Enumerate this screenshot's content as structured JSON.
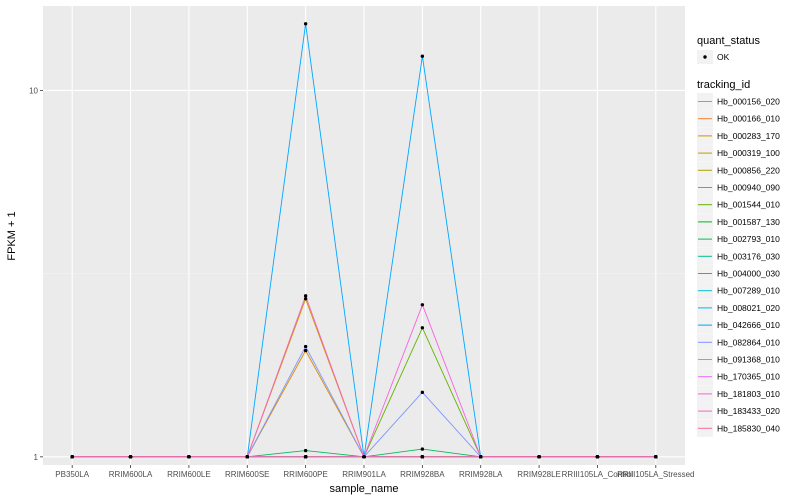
{
  "chart_data": {
    "type": "line",
    "xlabel": "sample_name",
    "ylabel": "FPKM + 1",
    "y_scale": "log10",
    "ylim": [
      0.95,
      17
    ],
    "y_ticks": [
      1,
      10
    ],
    "y_tick_labels": [
      "1",
      "10"
    ],
    "grid": true,
    "legend_position": "right",
    "categories": [
      "PB350LA",
      "RRIM600LA",
      "RRIM600LE",
      "RRIM600SE",
      "RRIM600PE",
      "RRIM901LA",
      "RRIM928BA",
      "RRIM928LA",
      "RRIM928LE",
      "RRIII105LA_Control",
      "RRIII105LA_Stressed"
    ],
    "point_legend": {
      "title": "quant_status",
      "entries": [
        {
          "label": "OK",
          "color": "#000000"
        }
      ]
    },
    "series_legend_title": "tracking_id",
    "series": [
      {
        "name": "Hb_000156_020",
        "color": "#F8766D",
        "values": [
          1,
          1,
          1,
          1,
          1.0,
          1,
          1.0,
          1,
          1,
          1,
          1
        ]
      },
      {
        "name": "Hb_000166_010",
        "color": "#EC8239",
        "values": [
          1,
          1,
          1,
          1,
          1.0,
          1,
          1.0,
          1,
          1,
          1,
          1
        ]
      },
      {
        "name": "Hb_000283_170",
        "color": "#DB8E00",
        "values": [
          1,
          1,
          1,
          1,
          1.95,
          1,
          1.0,
          1,
          1,
          1,
          1
        ]
      },
      {
        "name": "Hb_000319_100",
        "color": "#C79800",
        "values": [
          1,
          1,
          1,
          1,
          2.7,
          1,
          1.0,
          1,
          1,
          1,
          1
        ]
      },
      {
        "name": "Hb_000856_220",
        "color": "#AEA200",
        "values": [
          1,
          1,
          1,
          1,
          1.0,
          1,
          1.0,
          1,
          1,
          1,
          1
        ]
      },
      {
        "name": "Hb_000940_090",
        "color": "#8FAA00",
        "values": [
          1,
          1,
          1,
          1,
          1.0,
          1,
          1.0,
          1,
          1,
          1,
          1
        ]
      },
      {
        "name": "Hb_001544_010",
        "color": "#64B200",
        "values": [
          1,
          1,
          1,
          1,
          1.0,
          1,
          2.25,
          1,
          1,
          1,
          1
        ]
      },
      {
        "name": "Hb_001587_130",
        "color": "#00B81B",
        "values": [
          1,
          1,
          1,
          1,
          1.0,
          1,
          1.0,
          1,
          1,
          1,
          1
        ]
      },
      {
        "name": "Hb_002793_010",
        "color": "#00BD5C",
        "values": [
          1,
          1,
          1,
          1,
          1.04,
          1,
          1.05,
          1,
          1,
          1,
          1
        ]
      },
      {
        "name": "Hb_003176_030",
        "color": "#00C08E",
        "values": [
          1,
          1,
          1,
          1,
          1.0,
          1,
          1.0,
          1,
          1,
          1,
          1
        ]
      },
      {
        "name": "Hb_004000_030",
        "color": "#00C1B7",
        "values": [
          1,
          1,
          1,
          1,
          1.0,
          1,
          1.0,
          1,
          1,
          1,
          1
        ]
      },
      {
        "name": "Hb_007289_010",
        "color": "#00BDD4",
        "values": [
          1,
          1,
          1,
          1,
          1.0,
          1,
          1.0,
          1,
          1,
          1,
          1
        ]
      },
      {
        "name": "Hb_008021_020",
        "color": "#00B5EE",
        "values": [
          1,
          1,
          1,
          1,
          1.0,
          1,
          1.0,
          1,
          1,
          1,
          1
        ]
      },
      {
        "name": "Hb_042666_010",
        "color": "#00A7FF",
        "values": [
          1,
          1,
          1,
          1,
          15.2,
          1,
          12.4,
          1,
          1,
          1,
          1
        ]
      },
      {
        "name": "Hb_082864_010",
        "color": "#7F96FF",
        "values": [
          1,
          1,
          1,
          1,
          2.0,
          1,
          1.5,
          1,
          1,
          1,
          1
        ]
      },
      {
        "name": "Hb_091368_010",
        "color": "#BC81FF",
        "values": [
          1,
          1,
          1,
          1,
          1.0,
          1,
          1.0,
          1,
          1,
          1,
          1
        ]
      },
      {
        "name": "Hb_170365_010",
        "color": "#E26EF7",
        "values": [
          1,
          1,
          1,
          1,
          1.0,
          1,
          1.0,
          1,
          1,
          1,
          1
        ]
      },
      {
        "name": "Hb_181803_010",
        "color": "#F863DF",
        "values": [
          1,
          1,
          1,
          1,
          1.0,
          1,
          2.6,
          1,
          1,
          1,
          1
        ]
      },
      {
        "name": "Hb_183433_020",
        "color": "#FF62BF",
        "values": [
          1,
          1,
          1,
          1,
          2.75,
          1,
          1.0,
          1,
          1,
          1,
          1
        ]
      },
      {
        "name": "Hb_185830_040",
        "color": "#FF6A98",
        "values": [
          1,
          1,
          1,
          1,
          1.0,
          1,
          1.0,
          1,
          1,
          1,
          1
        ]
      }
    ]
  }
}
